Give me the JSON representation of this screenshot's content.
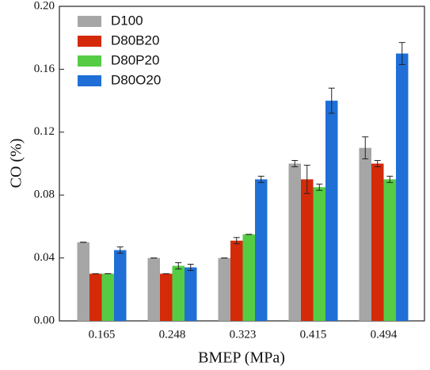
{
  "chart_data": {
    "type": "bar",
    "categories": [
      "0.165",
      "0.248",
      "0.323",
      "0.415",
      "0.494"
    ],
    "xlabel": "BMEP (MPa)",
    "ylabel": "CO (%)",
    "ylim": [
      0,
      0.2
    ],
    "yticks": [
      {
        "value": 0,
        "label": "0.00"
      },
      {
        "value": 0.04,
        "label": "0.04"
      },
      {
        "value": 0.08,
        "label": "0.08"
      },
      {
        "value": 0.12,
        "label": "0.12"
      },
      {
        "value": 0.16,
        "label": "0.16"
      },
      {
        "value": 0.2,
        "label": "0.20"
      }
    ],
    "legend": "upper-left",
    "series": [
      {
        "name": "D100",
        "color": "#a6a6a6",
        "values": [
          0.05,
          0.04,
          0.04,
          0.1,
          0.11
        ],
        "errors": [
          0,
          0,
          0,
          0.002,
          0.007
        ]
      },
      {
        "name": "D80B20",
        "color": "#d42a0a",
        "values": [
          0.03,
          0.03,
          0.051,
          0.09,
          0.1
        ],
        "errors": [
          0,
          0,
          0.002,
          0.009,
          0.002
        ]
      },
      {
        "name": "D80P20",
        "color": "#55cc44",
        "values": [
          0.03,
          0.035,
          0.055,
          0.085,
          0.09
        ],
        "errors": [
          0,
          0.002,
          0,
          0.002,
          0.002
        ]
      },
      {
        "name": "D80O20",
        "color": "#1f6fd6",
        "values": [
          0.045,
          0.034,
          0.09,
          0.14,
          0.17
        ],
        "errors": [
          0.002,
          0.002,
          0.002,
          0.008,
          0.007
        ]
      }
    ]
  }
}
